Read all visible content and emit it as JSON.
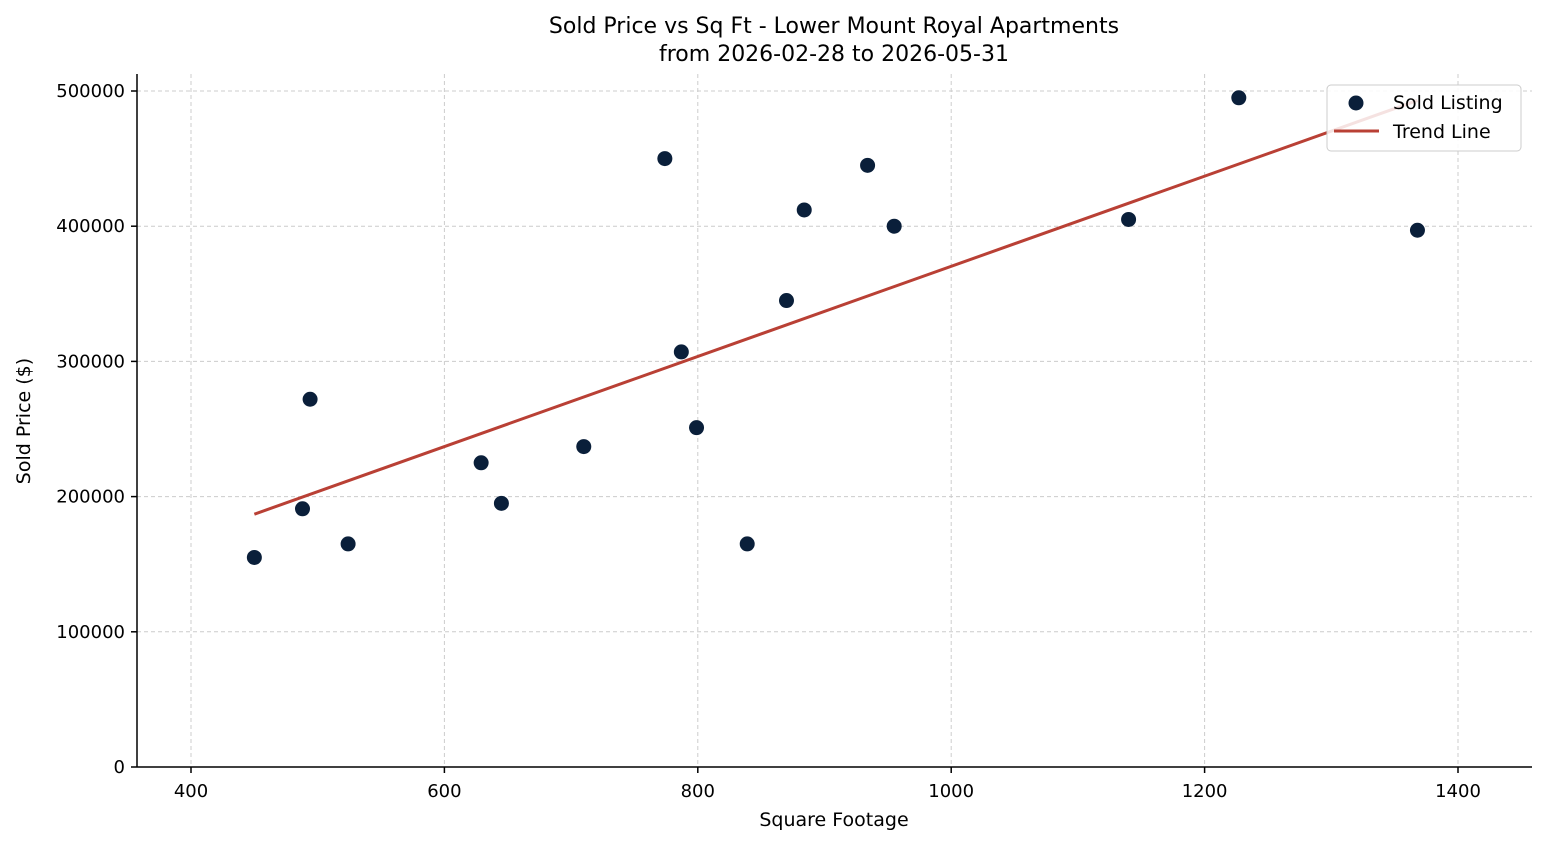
{
  "chart_data": {
    "type": "scatter",
    "title": "Sold Price vs Sq Ft - Lower Mount Royal Apartments",
    "subtitle": "from 2026-02-28 to 2026-05-31",
    "xlabel": "Square Footage",
    "ylabel": "Sold Price ($)",
    "xlim": [
      357,
      1460
    ],
    "ylim": [
      0,
      512500
    ],
    "x_ticks": [
      400,
      600,
      800,
      1000,
      1200,
      1400
    ],
    "y_ticks": [
      0,
      100000,
      200000,
      300000,
      400000,
      500000
    ],
    "x_tick_labels": [
      "400",
      "600",
      "800",
      "1000",
      "1200",
      "1400"
    ],
    "y_tick_labels": [
      "0",
      "100000",
      "200000",
      "300000",
      "400000",
      "500000"
    ],
    "grid": true,
    "legend_position": "top-right",
    "series": [
      {
        "name": "Sold Listing",
        "kind": "scatter",
        "color": "#0a1f3a",
        "points": [
          {
            "x": 450,
            "y": 155000
          },
          {
            "x": 488,
            "y": 191000
          },
          {
            "x": 494,
            "y": 272000
          },
          {
            "x": 524,
            "y": 165000
          },
          {
            "x": 629,
            "y": 225000
          },
          {
            "x": 645,
            "y": 195000
          },
          {
            "x": 710,
            "y": 237000
          },
          {
            "x": 774,
            "y": 450000
          },
          {
            "x": 787,
            "y": 307000
          },
          {
            "x": 799,
            "y": 251000
          },
          {
            "x": 839,
            "y": 165000
          },
          {
            "x": 870,
            "y": 345000
          },
          {
            "x": 884,
            "y": 412000
          },
          {
            "x": 934,
            "y": 445000
          },
          {
            "x": 955,
            "y": 400000
          },
          {
            "x": 1140,
            "y": 405000
          },
          {
            "x": 1227,
            "y": 495000
          },
          {
            "x": 1368,
            "y": 397000
          }
        ]
      },
      {
        "name": "Trend Line",
        "kind": "line",
        "color": "#b94035",
        "points": [
          {
            "x": 450,
            "y": 187000
          },
          {
            "x": 1368,
            "y": 493000
          }
        ]
      }
    ]
  }
}
